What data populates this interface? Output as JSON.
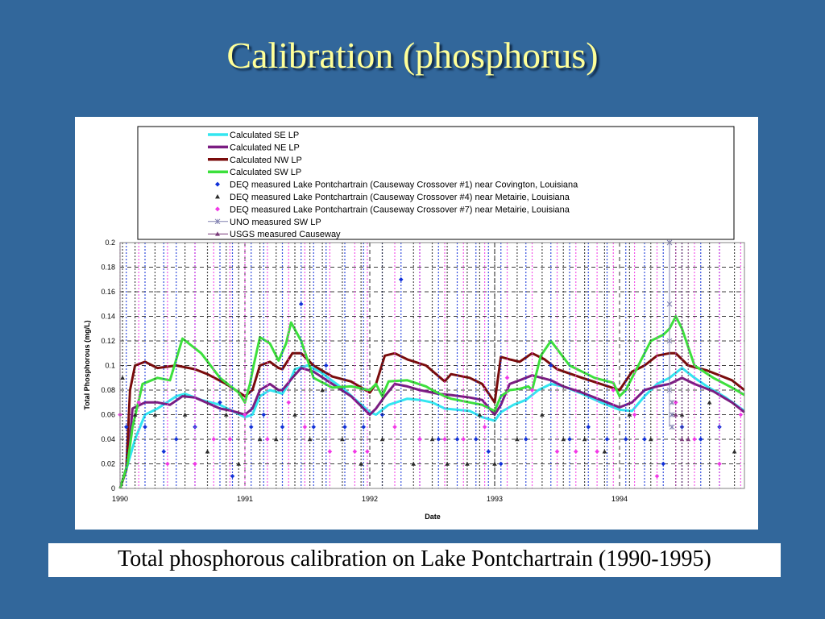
{
  "slide": {
    "title": "Calibration (phosphorus)",
    "caption": "Total phosphorous calibration on Lake Pontchartrain (1990-1995)",
    "background_color": "#32679b",
    "title_color": "#ffff99"
  },
  "chart_data": {
    "type": "line",
    "xlabel": "Date",
    "ylabel": "Total Phosphorous (mg/L)",
    "ylim": [
      0,
      0.2
    ],
    "xlim": [
      1990,
      1995
    ],
    "x_ticks": [
      "1990",
      "1991",
      "1992",
      "1993",
      "1994"
    ],
    "y_ticks": [
      "0",
      "0.02",
      "0.04",
      "0.06",
      "0.08",
      "0.1",
      "0.12",
      "0.14",
      "0.16",
      "0.18",
      "0.2"
    ],
    "grid": "dashed",
    "legend_position": "top",
    "series": [
      {
        "name": "Calculated SE LP",
        "kind": "line",
        "color": "#33e6f0",
        "x": [
          1990.0,
          1990.05,
          1990.12,
          1990.2,
          1990.3,
          1990.45,
          1990.52,
          1990.65,
          1990.8,
          1990.9,
          1991.0,
          1991.06,
          1991.12,
          1991.2,
          1991.27,
          1991.3,
          1991.35,
          1991.4,
          1991.5,
          1991.6,
          1991.8,
          1992.0,
          1992.05,
          1992.15,
          1992.3,
          1992.4,
          1992.5,
          1992.6,
          1992.7,
          1992.8,
          1992.9,
          1993.0,
          1993.05,
          1993.15,
          1993.25,
          1993.35,
          1993.45,
          1993.55,
          1993.7,
          1993.85,
          1994.0,
          1994.1,
          1994.2,
          1994.3,
          1994.4,
          1994.5,
          1994.6,
          1994.7,
          1994.85,
          1995.0
        ],
        "values": [
          0.0,
          0.015,
          0.04,
          0.06,
          0.065,
          0.075,
          0.077,
          0.072,
          0.068,
          0.063,
          0.058,
          0.06,
          0.075,
          0.08,
          0.078,
          0.077,
          0.085,
          0.097,
          0.1,
          0.095,
          0.08,
          0.062,
          0.06,
          0.068,
          0.073,
          0.072,
          0.07,
          0.065,
          0.064,
          0.063,
          0.058,
          0.055,
          0.062,
          0.068,
          0.072,
          0.08,
          0.085,
          0.083,
          0.077,
          0.07,
          0.064,
          0.063,
          0.075,
          0.085,
          0.09,
          0.098,
          0.09,
          0.083,
          0.074,
          0.063
        ]
      },
      {
        "name": "Calculated NE LP",
        "kind": "line",
        "color": "#7b1d82",
        "x": [
          1990.0,
          1990.06,
          1990.1,
          1990.2,
          1990.3,
          1990.4,
          1990.5,
          1990.6,
          1990.8,
          1990.9,
          1991.0,
          1991.06,
          1991.12,
          1991.2,
          1991.27,
          1991.3,
          1991.38,
          1991.45,
          1991.55,
          1991.7,
          1991.85,
          1992.0,
          1992.05,
          1992.12,
          1992.2,
          1992.3,
          1992.4,
          1992.55,
          1992.65,
          1992.8,
          1992.9,
          1993.0,
          1993.05,
          1993.12,
          1993.2,
          1993.3,
          1993.45,
          1993.55,
          1993.7,
          1993.85,
          1994.0,
          1994.1,
          1994.2,
          1994.3,
          1994.4,
          1994.5,
          1994.6,
          1994.75,
          1994.9,
          1995.0
        ],
        "values": [
          0.0,
          0.02,
          0.065,
          0.07,
          0.07,
          0.068,
          0.075,
          0.074,
          0.065,
          0.063,
          0.06,
          0.065,
          0.08,
          0.085,
          0.08,
          0.08,
          0.09,
          0.098,
          0.095,
          0.085,
          0.075,
          0.06,
          0.065,
          0.075,
          0.085,
          0.083,
          0.08,
          0.077,
          0.076,
          0.074,
          0.072,
          0.06,
          0.068,
          0.085,
          0.088,
          0.092,
          0.088,
          0.083,
          0.078,
          0.072,
          0.066,
          0.07,
          0.08,
          0.083,
          0.085,
          0.09,
          0.085,
          0.079,
          0.07,
          0.062
        ]
      },
      {
        "name": "Calculated NW LP",
        "kind": "line",
        "color": "#7a0c0c",
        "x": [
          1990.0,
          1990.05,
          1990.08,
          1990.12,
          1990.2,
          1990.3,
          1990.45,
          1990.6,
          1990.7,
          1990.85,
          1991.0,
          1991.06,
          1991.12,
          1991.2,
          1991.27,
          1991.3,
          1991.38,
          1991.45,
          1991.55,
          1991.7,
          1991.85,
          1992.0,
          1992.05,
          1992.12,
          1992.2,
          1992.3,
          1992.45,
          1992.6,
          1992.65,
          1992.8,
          1992.9,
          1993.0,
          1993.05,
          1993.12,
          1993.2,
          1993.3,
          1993.4,
          1993.5,
          1993.7,
          1993.85,
          1994.0,
          1994.1,
          1994.2,
          1994.3,
          1994.4,
          1994.45,
          1994.55,
          1994.7,
          1994.9,
          1995.0
        ],
        "values": [
          0.0,
          0.015,
          0.08,
          0.1,
          0.103,
          0.098,
          0.1,
          0.097,
          0.093,
          0.085,
          0.075,
          0.08,
          0.1,
          0.103,
          0.098,
          0.097,
          0.11,
          0.11,
          0.1,
          0.091,
          0.087,
          0.078,
          0.085,
          0.108,
          0.11,
          0.105,
          0.1,
          0.087,
          0.093,
          0.09,
          0.085,
          0.07,
          0.107,
          0.105,
          0.103,
          0.11,
          0.105,
          0.097,
          0.09,
          0.085,
          0.08,
          0.095,
          0.1,
          0.108,
          0.11,
          0.11,
          0.1,
          0.096,
          0.088,
          0.08
        ]
      },
      {
        "name": "Calculated  SW LP",
        "kind": "line",
        "color": "#3ce03c",
        "x": [
          1990.0,
          1990.06,
          1990.1,
          1990.18,
          1990.3,
          1990.4,
          1990.5,
          1990.65,
          1990.8,
          1990.95,
          1991.0,
          1991.04,
          1991.07,
          1991.12,
          1991.2,
          1991.27,
          1991.33,
          1991.37,
          1991.45,
          1991.55,
          1991.7,
          1991.85,
          1992.0,
          1992.05,
          1992.1,
          1992.15,
          1992.3,
          1992.45,
          1992.5,
          1992.6,
          1992.65,
          1992.8,
          1992.9,
          1993.0,
          1993.05,
          1993.12,
          1993.2,
          1993.27,
          1993.3,
          1993.37,
          1993.45,
          1993.6,
          1993.8,
          1993.95,
          1994.0,
          1994.05,
          1994.15,
          1994.25,
          1994.35,
          1994.4,
          1994.45,
          1994.5,
          1994.6,
          1994.75,
          1994.9,
          1995.0
        ],
        "values": [
          0.0,
          0.02,
          0.05,
          0.085,
          0.09,
          0.088,
          0.122,
          0.11,
          0.09,
          0.078,
          0.07,
          0.085,
          0.1,
          0.123,
          0.118,
          0.104,
          0.118,
          0.135,
          0.12,
          0.09,
          0.082,
          0.083,
          0.08,
          0.085,
          0.075,
          0.087,
          0.088,
          0.083,
          0.08,
          0.075,
          0.073,
          0.07,
          0.068,
          0.063,
          0.075,
          0.08,
          0.081,
          0.083,
          0.08,
          0.108,
          0.12,
          0.1,
          0.09,
          0.086,
          0.075,
          0.08,
          0.1,
          0.12,
          0.125,
          0.13,
          0.14,
          0.13,
          0.1,
          0.09,
          0.082,
          0.076
        ]
      },
      {
        "name": "DEQ measured Lake Pontchartrain (Causeway Crossover #1) near Covington, Louisiana",
        "kind": "points",
        "marker": "diamond",
        "color": "#1030d8",
        "x": [
          1990.05,
          1990.2,
          1990.35,
          1990.45,
          1990.6,
          1990.8,
          1990.9,
          1991.05,
          1991.15,
          1991.3,
          1991.45,
          1991.55,
          1991.65,
          1991.8,
          1991.95,
          1992.1,
          1992.25,
          1992.4,
          1992.55,
          1992.7,
          1992.85,
          1992.95,
          1993.05,
          1993.25,
          1993.45,
          1993.6,
          1993.75,
          1993.9,
          1994.05,
          1994.2,
          1994.35,
          1994.5,
          1994.65,
          1994.8
        ],
        "values": [
          0.05,
          0.05,
          0.03,
          0.04,
          0.05,
          0.07,
          0.01,
          0.05,
          0.06,
          0.05,
          0.15,
          0.05,
          0.1,
          0.05,
          0.05,
          0.06,
          0.17,
          0.04,
          0.04,
          0.04,
          0.04,
          0.03,
          0.02,
          0.04,
          0.1,
          0.04,
          0.05,
          0.04,
          0.04,
          0.04,
          0.02,
          0.05,
          0.04,
          0.05
        ]
      },
      {
        "name": "DEQ measured Lake Pontchartrain (Causeway Crossover #4) near Metairie, Louisiana",
        "kind": "points",
        "marker": "triangle",
        "color": "#2b2b2b",
        "x": [
          1990.02,
          1990.12,
          1990.28,
          1990.52,
          1990.7,
          1990.85,
          1990.95,
          1991.12,
          1991.25,
          1991.4,
          1991.52,
          1991.62,
          1991.78,
          1991.93,
          1992.1,
          1992.35,
          1992.5,
          1992.62,
          1992.78,
          1992.88,
          1993.0,
          1993.18,
          1993.38,
          1993.55,
          1993.72,
          1993.88,
          1994.08,
          1994.25,
          1994.5,
          1994.72,
          1994.92
        ],
        "values": [
          0.09,
          0.06,
          0.06,
          0.06,
          0.03,
          0.06,
          0.02,
          0.04,
          0.04,
          0.06,
          0.04,
          0.08,
          0.04,
          0.02,
          0.04,
          0.02,
          0.04,
          0.02,
          0.02,
          0.06,
          0.02,
          0.04,
          0.06,
          0.04,
          0.04,
          0.03,
          0.06,
          0.04,
          0.06,
          0.07,
          0.03
        ]
      },
      {
        "name": "DEQ measured Lake Pontchartrain (Causeway Crossover #7) near Metairie, Louisiana",
        "kind": "points",
        "marker": "diamond",
        "color": "#f238e6",
        "x": [
          1990.0,
          1990.15,
          1990.38,
          1990.6,
          1990.75,
          1990.88,
          1991.0,
          1991.18,
          1991.35,
          1991.48,
          1991.68,
          1991.88,
          1991.98,
          1992.2,
          1992.4,
          1992.6,
          1992.75,
          1992.92,
          1993.1,
          1993.3,
          1993.5,
          1993.65,
          1993.82,
          1993.95,
          1994.12,
          1994.3,
          1994.45,
          1994.6,
          1994.8,
          1994.97
        ],
        "values": [
          0.06,
          0.07,
          0.02,
          0.02,
          0.04,
          0.04,
          0.06,
          0.04,
          0.07,
          0.05,
          0.03,
          0.03,
          0.03,
          0.05,
          0.04,
          0.04,
          0.04,
          0.05,
          0.09,
          0.08,
          0.03,
          0.03,
          0.03,
          0.08,
          0.06,
          0.01,
          0.07,
          0.04,
          0.02,
          0.06
        ]
      },
      {
        "name": "UNO measured SW LP",
        "kind": "points",
        "marker": "star",
        "color": "#8080b0",
        "x": [
          1994.4,
          1994.4,
          1994.4,
          1994.4,
          1994.42,
          1994.42,
          1994.42
        ],
        "values": [
          0.2,
          0.15,
          0.12,
          0.08,
          0.07,
          0.06,
          0.05
        ]
      },
      {
        "name": "USGS measured Causeway",
        "kind": "points",
        "marker": "triangle",
        "color": "#7a3a7a",
        "x": [
          1994.45,
          1994.5,
          1994.55
        ],
        "values": [
          0.06,
          0.04,
          0.04
        ]
      }
    ]
  }
}
